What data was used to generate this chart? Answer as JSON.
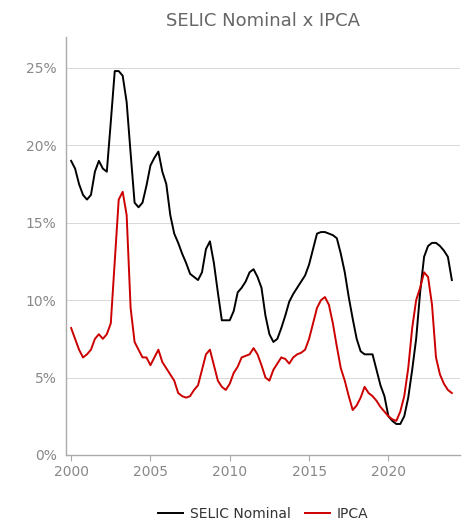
{
  "title": "SELIC Nominal x IPCA",
  "title_fontsize": 13,
  "background_color": "#ffffff",
  "selic_color": "#000000",
  "ipca_color": "#cc0000",
  "selic_label": "SELIC Nominal",
  "ipca_label": "IPCA",
  "ylim": [
    0,
    0.27
  ],
  "yticks": [
    0.0,
    0.05,
    0.1,
    0.15,
    0.2,
    0.25
  ],
  "ytick_labels": [
    "0%",
    "5%",
    "10%",
    "15%",
    "20%",
    "25%"
  ],
  "line_width": 1.4,
  "legend_fontsize": 10,
  "tick_fontsize": 10,
  "title_color": "#666666",
  "tick_color": "#888888",
  "selic_data": {
    "years": [
      2000.0,
      2000.25,
      2000.5,
      2000.75,
      2001.0,
      2001.25,
      2001.5,
      2001.75,
      2002.0,
      2002.25,
      2002.5,
      2002.75,
      2003.0,
      2003.25,
      2003.5,
      2003.75,
      2004.0,
      2004.25,
      2004.5,
      2004.75,
      2005.0,
      2005.25,
      2005.5,
      2005.75,
      2006.0,
      2006.25,
      2006.5,
      2006.75,
      2007.0,
      2007.25,
      2007.5,
      2007.75,
      2008.0,
      2008.25,
      2008.5,
      2008.75,
      2009.0,
      2009.25,
      2009.5,
      2009.75,
      2010.0,
      2010.25,
      2010.5,
      2010.75,
      2011.0,
      2011.25,
      2011.5,
      2011.75,
      2012.0,
      2012.25,
      2012.5,
      2012.75,
      2013.0,
      2013.25,
      2013.5,
      2013.75,
      2014.0,
      2014.25,
      2014.5,
      2014.75,
      2015.0,
      2015.25,
      2015.5,
      2015.75,
      2016.0,
      2016.25,
      2016.5,
      2016.75,
      2017.0,
      2017.25,
      2017.5,
      2017.75,
      2018.0,
      2018.25,
      2018.5,
      2018.75,
      2019.0,
      2019.25,
      2019.5,
      2019.75,
      2020.0,
      2020.25,
      2020.5,
      2020.75,
      2021.0,
      2021.25,
      2021.5,
      2021.75,
      2022.0,
      2022.25,
      2022.5,
      2022.75,
      2023.0,
      2023.25,
      2023.5,
      2023.75,
      2024.0
    ],
    "values": [
      0.19,
      0.185,
      0.175,
      0.168,
      0.165,
      0.168,
      0.183,
      0.19,
      0.185,
      0.183,
      0.215,
      0.248,
      0.248,
      0.245,
      0.228,
      0.195,
      0.163,
      0.16,
      0.163,
      0.174,
      0.187,
      0.192,
      0.196,
      0.183,
      0.175,
      0.155,
      0.143,
      0.137,
      0.13,
      0.124,
      0.117,
      0.115,
      0.113,
      0.118,
      0.133,
      0.138,
      0.124,
      0.105,
      0.087,
      0.087,
      0.087,
      0.093,
      0.105,
      0.108,
      0.112,
      0.118,
      0.12,
      0.115,
      0.108,
      0.09,
      0.078,
      0.073,
      0.075,
      0.082,
      0.09,
      0.099,
      0.104,
      0.108,
      0.112,
      0.116,
      0.123,
      0.133,
      0.143,
      0.144,
      0.144,
      0.143,
      0.142,
      0.14,
      0.13,
      0.118,
      0.102,
      0.088,
      0.075,
      0.067,
      0.065,
      0.065,
      0.065,
      0.055,
      0.045,
      0.038,
      0.025,
      0.022,
      0.02,
      0.02,
      0.025,
      0.037,
      0.055,
      0.075,
      0.105,
      0.128,
      0.135,
      0.137,
      0.137,
      0.135,
      0.132,
      0.128,
      0.113
    ]
  },
  "ipca_data": {
    "years": [
      2000.0,
      2000.25,
      2000.5,
      2000.75,
      2001.0,
      2001.25,
      2001.5,
      2001.75,
      2002.0,
      2002.25,
      2002.5,
      2002.75,
      2003.0,
      2003.25,
      2003.5,
      2003.75,
      2004.0,
      2004.25,
      2004.5,
      2004.75,
      2005.0,
      2005.25,
      2005.5,
      2005.75,
      2006.0,
      2006.25,
      2006.5,
      2006.75,
      2007.0,
      2007.25,
      2007.5,
      2007.75,
      2008.0,
      2008.25,
      2008.5,
      2008.75,
      2009.0,
      2009.25,
      2009.5,
      2009.75,
      2010.0,
      2010.25,
      2010.5,
      2010.75,
      2011.0,
      2011.25,
      2011.5,
      2011.75,
      2012.0,
      2012.25,
      2012.5,
      2012.75,
      2013.0,
      2013.25,
      2013.5,
      2013.75,
      2014.0,
      2014.25,
      2014.5,
      2014.75,
      2015.0,
      2015.25,
      2015.5,
      2015.75,
      2016.0,
      2016.25,
      2016.5,
      2016.75,
      2017.0,
      2017.25,
      2017.5,
      2017.75,
      2018.0,
      2018.25,
      2018.5,
      2018.75,
      2019.0,
      2019.25,
      2019.5,
      2019.75,
      2020.0,
      2020.25,
      2020.5,
      2020.75,
      2021.0,
      2021.25,
      2021.5,
      2021.75,
      2022.0,
      2022.25,
      2022.5,
      2022.75,
      2023.0,
      2023.25,
      2023.5,
      2023.75,
      2024.0
    ],
    "values": [
      0.082,
      0.075,
      0.068,
      0.063,
      0.065,
      0.068,
      0.075,
      0.078,
      0.075,
      0.078,
      0.085,
      0.125,
      0.165,
      0.17,
      0.155,
      0.095,
      0.073,
      0.068,
      0.063,
      0.063,
      0.058,
      0.063,
      0.068,
      0.06,
      0.056,
      0.052,
      0.048,
      0.04,
      0.038,
      0.037,
      0.038,
      0.042,
      0.045,
      0.055,
      0.065,
      0.068,
      0.058,
      0.048,
      0.044,
      0.042,
      0.046,
      0.053,
      0.057,
      0.063,
      0.064,
      0.065,
      0.069,
      0.065,
      0.058,
      0.05,
      0.048,
      0.055,
      0.059,
      0.063,
      0.062,
      0.059,
      0.063,
      0.065,
      0.066,
      0.068,
      0.075,
      0.085,
      0.095,
      0.1,
      0.102,
      0.097,
      0.085,
      0.07,
      0.056,
      0.048,
      0.038,
      0.029,
      0.032,
      0.037,
      0.044,
      0.04,
      0.038,
      0.035,
      0.031,
      0.028,
      0.025,
      0.023,
      0.022,
      0.028,
      0.038,
      0.056,
      0.082,
      0.1,
      0.108,
      0.118,
      0.115,
      0.097,
      0.063,
      0.052,
      0.046,
      0.042,
      0.04
    ]
  }
}
